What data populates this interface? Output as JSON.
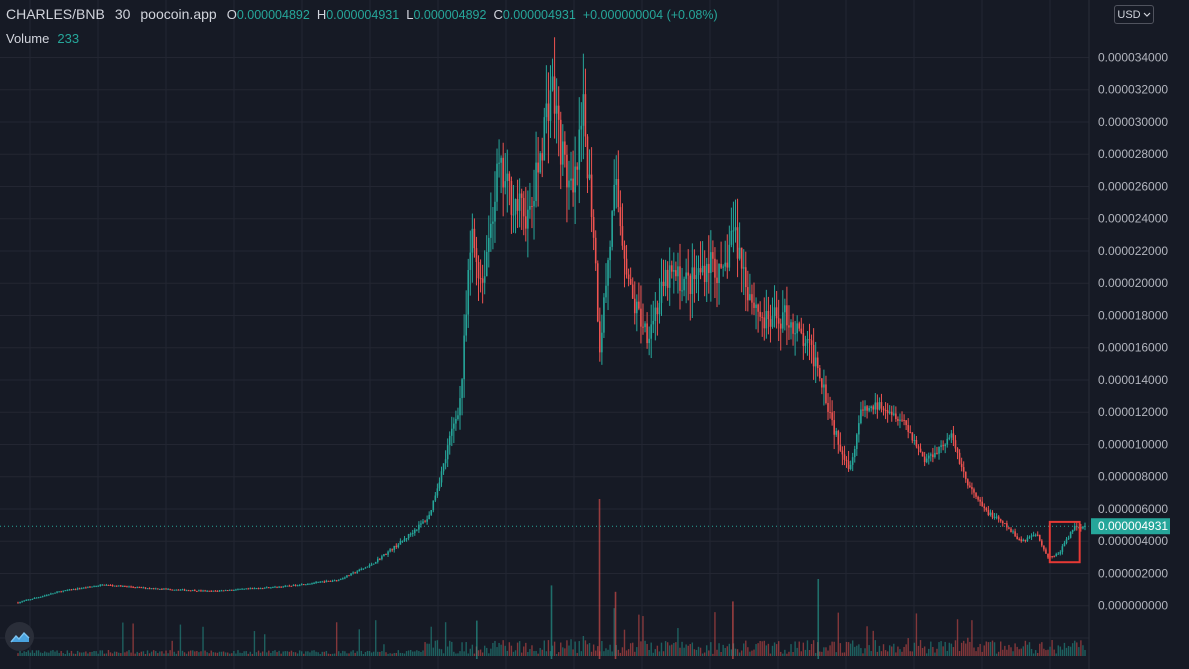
{
  "legend": {
    "symbol": "CHARLES/BNB",
    "timeframe": "30",
    "source": "poocoin.app",
    "open_key": "O",
    "open": "0.000004892",
    "high_key": "H",
    "high": "0.000004931",
    "low_key": "L",
    "low": "0.000004892",
    "close_key": "C",
    "close": "0.000004931",
    "change": "+0.000000004 (+0.08%)"
  },
  "volume": {
    "label": "Volume",
    "value": "233"
  },
  "currency": {
    "label": "USD"
  },
  "icons": {
    "currency_dropdown": "chevron-down-icon",
    "logo": "tradingview-logo-icon"
  },
  "colors": {
    "up": "#26a69a",
    "down": "#ef5350",
    "background": "#161a25",
    "grid": "#232632",
    "highlight_box": "#e53935"
  },
  "chart_data": {
    "type": "candlestick",
    "y_axis": {
      "ticks": [
        "0.000000000",
        "0.000002000",
        "0.000004000",
        "0.000006000",
        "0.000008000",
        "0.000010000",
        "0.000012000",
        "0.000014000",
        "0.000016000",
        "0.000018000",
        "0.000020000",
        "0.000022000",
        "0.000024000",
        "0.000026000",
        "0.000028000",
        "0.000030000",
        "0.000032000",
        "0.000034000"
      ],
      "ylim": [
        -2e-06,
        3.62e-05
      ]
    },
    "current_price": {
      "label": "0.000004931",
      "value": 4.931e-06
    },
    "price_path": [
      {
        "t": 0,
        "v": 2e-07
      },
      {
        "t": 0.04,
        "v": 9e-07
      },
      {
        "t": 0.08,
        "v": 1.3e-06
      },
      {
        "t": 0.12,
        "v": 1.1e-06
      },
      {
        "t": 0.18,
        "v": 9e-07
      },
      {
        "t": 0.25,
        "v": 1.2e-06
      },
      {
        "t": 0.3,
        "v": 1.6e-06
      },
      {
        "t": 0.33,
        "v": 2.5e-06
      },
      {
        "t": 0.36,
        "v": 4e-06
      },
      {
        "t": 0.385,
        "v": 5.5e-06
      },
      {
        "t": 0.4,
        "v": 9e-06
      },
      {
        "t": 0.415,
        "v": 1.3e-05
      },
      {
        "t": 0.425,
        "v": 2.3e-05
      },
      {
        "t": 0.435,
        "v": 2e-05
      },
      {
        "t": 0.45,
        "v": 2.7e-05
      },
      {
        "t": 0.465,
        "v": 2.5e-05
      },
      {
        "t": 0.48,
        "v": 2.4e-05
      },
      {
        "t": 0.495,
        "v": 3.05e-05
      },
      {
        "t": 0.5,
        "v": 3.25e-05
      },
      {
        "t": 0.51,
        "v": 2.8e-05
      },
      {
        "t": 0.52,
        "v": 2.5e-05
      },
      {
        "t": 0.53,
        "v": 3.05e-05
      },
      {
        "t": 0.54,
        "v": 2.3e-05
      },
      {
        "t": 0.545,
        "v": 1.6e-05
      },
      {
        "t": 0.56,
        "v": 2.6e-05
      },
      {
        "t": 0.575,
        "v": 1.9e-05
      },
      {
        "t": 0.59,
        "v": 1.7e-05
      },
      {
        "t": 0.61,
        "v": 2.05e-05
      },
      {
        "t": 0.63,
        "v": 2e-05
      },
      {
        "t": 0.65,
        "v": 2.15e-05
      },
      {
        "t": 0.66,
        "v": 2e-05
      },
      {
        "t": 0.67,
        "v": 2.35e-05
      },
      {
        "t": 0.685,
        "v": 1.95e-05
      },
      {
        "t": 0.7,
        "v": 1.75e-05
      },
      {
        "t": 0.72,
        "v": 1.8e-05
      },
      {
        "t": 0.735,
        "v": 1.65e-05
      },
      {
        "t": 0.75,
        "v": 1.5e-05
      },
      {
        "t": 0.765,
        "v": 1.1e-05
      },
      {
        "t": 0.78,
        "v": 8.5e-06
      },
      {
        "t": 0.79,
        "v": 1.2e-05
      },
      {
        "t": 0.81,
        "v": 1.25e-05
      },
      {
        "t": 0.83,
        "v": 1.15e-05
      },
      {
        "t": 0.85,
        "v": 9e-06
      },
      {
        "t": 0.875,
        "v": 1.05e-05
      },
      {
        "t": 0.89,
        "v": 7.5e-06
      },
      {
        "t": 0.905,
        "v": 6e-06
      },
      {
        "t": 0.925,
        "v": 5e-06
      },
      {
        "t": 0.94,
        "v": 4e-06
      },
      {
        "t": 0.955,
        "v": 4.5e-06
      },
      {
        "t": 0.965,
        "v": 3e-06
      },
      {
        "t": 0.975,
        "v": 3.2e-06
      },
      {
        "t": 0.99,
        "v": 4.9e-06
      },
      {
        "t": 1.0,
        "v": 4.931e-06
      }
    ],
    "volume_spikes": [
      {
        "t": 0.545,
        "v": 0.05
      },
      {
        "t": 0.5,
        "v": 0.023
      },
      {
        "t": 0.56,
        "v": 0.021
      },
      {
        "t": 0.75,
        "v": 0.025
      },
      {
        "t": 0.67,
        "v": 0.018
      },
      {
        "t": 0.43,
        "v": 0.012
      }
    ],
    "highlight_box": {
      "t_start": 0.967,
      "t_end": 0.995,
      "v_low": 2.7e-06,
      "v_high": 5.2e-06
    }
  }
}
